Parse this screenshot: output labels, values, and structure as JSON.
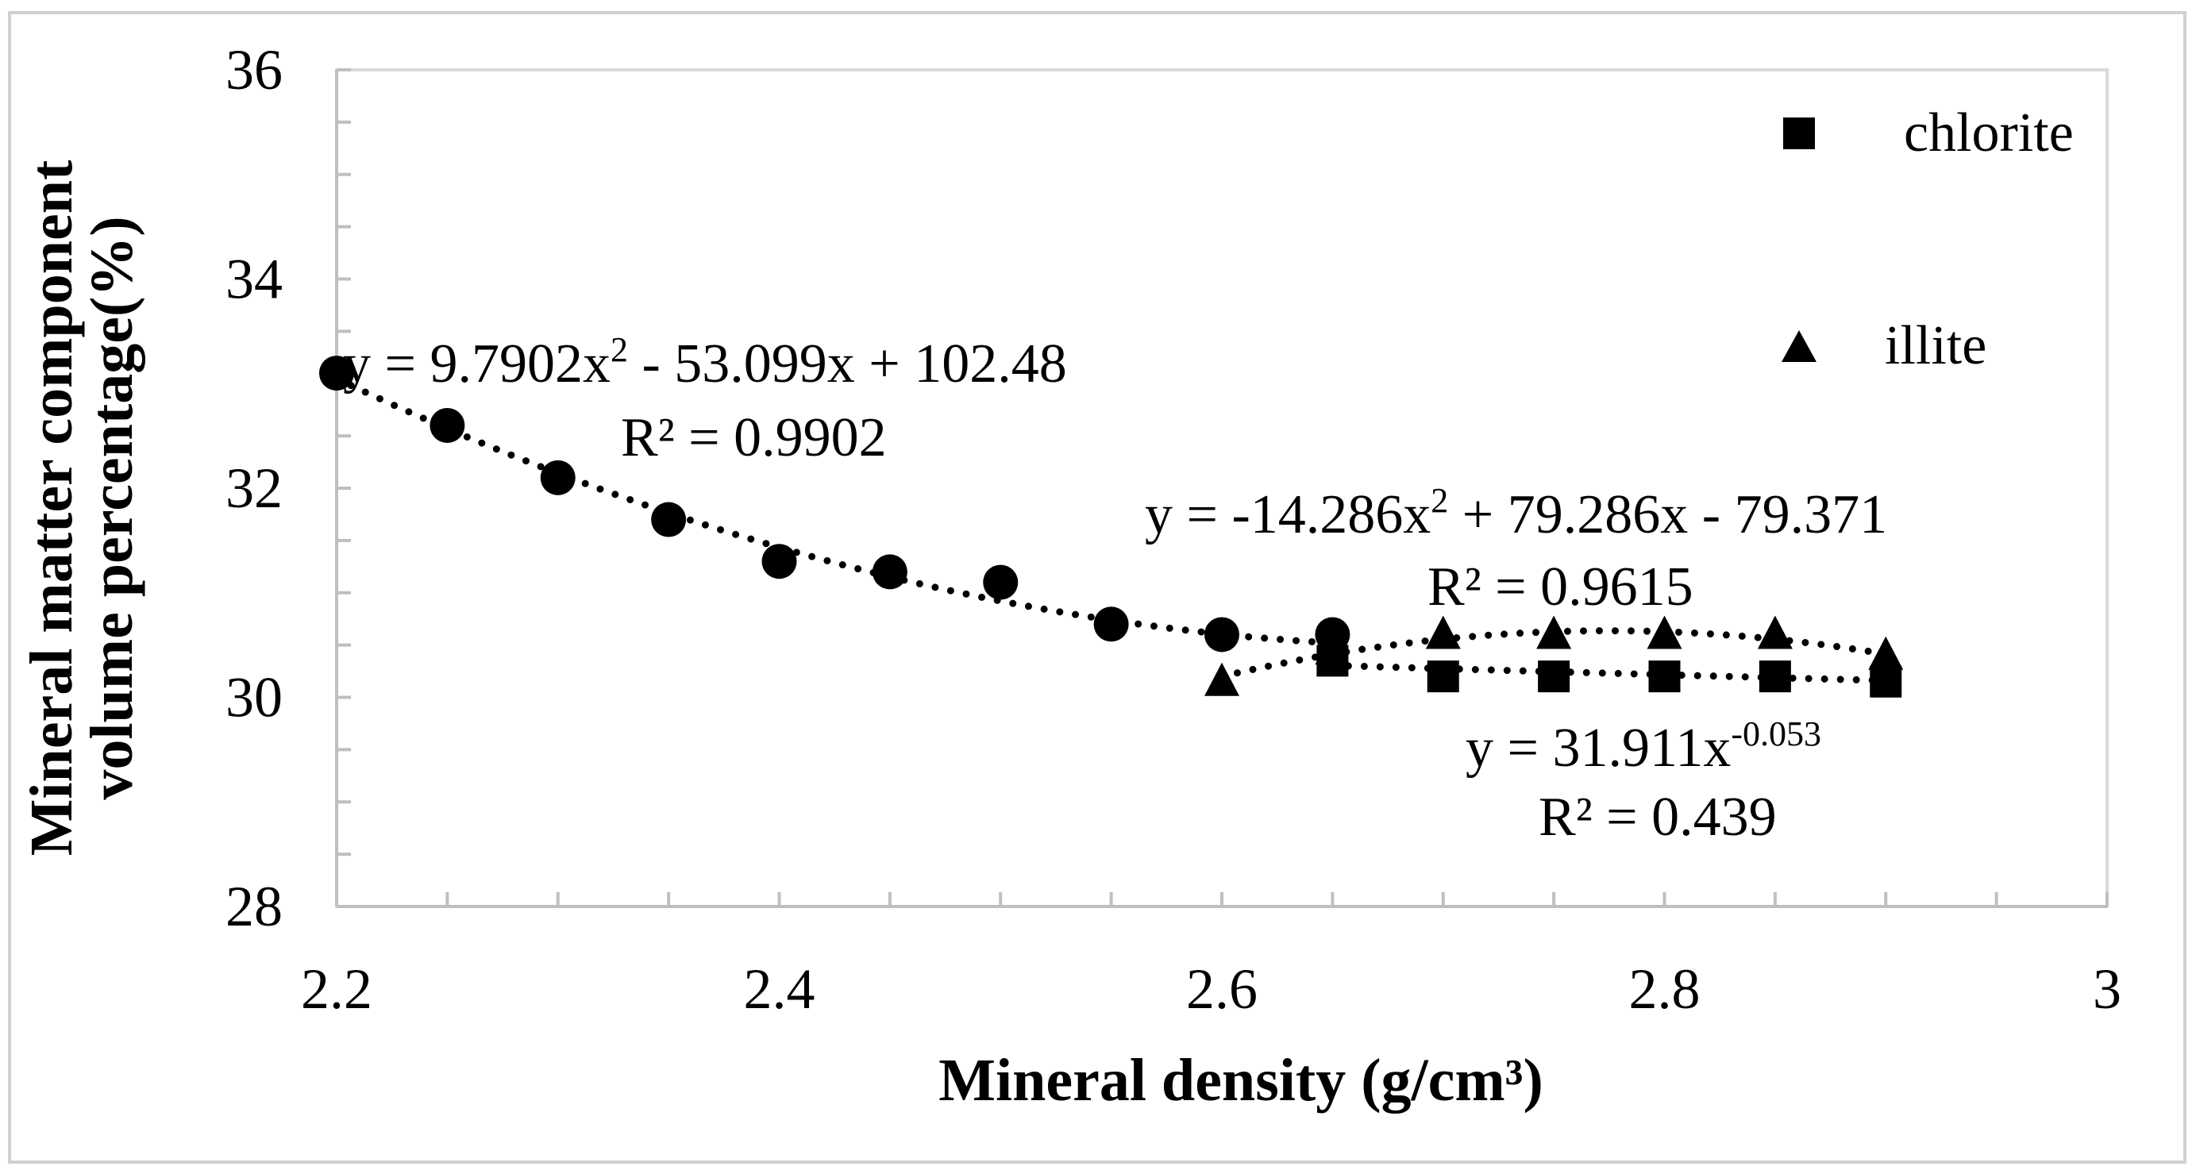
{
  "chart_data": {
    "type": "scatter",
    "xlabel": "Mineral density (g/cm³)",
    "ylabel_lines": [
      "Mineral matter component",
      "volume percentage(%)"
    ],
    "xlim": [
      2.2,
      3
    ],
    "ylim": [
      28,
      36
    ],
    "x_ticks": [
      "2.2",
      "2.4",
      "2.6",
      "2.8",
      "3"
    ],
    "y_ticks": [
      "28",
      "30",
      "32",
      "34",
      "36"
    ],
    "grid": false,
    "legend_position": "top-right",
    "series": [
      {
        "name": "circle series",
        "marker": "circle",
        "in_legend": false,
        "x": [
          2.2,
          2.25,
          2.3,
          2.35,
          2.4,
          2.45,
          2.5,
          2.55,
          2.6,
          2.65
        ],
        "y": [
          33.1,
          32.6,
          32.1,
          31.7,
          31.3,
          31.2,
          31.1,
          30.7,
          30.6,
          30.6
        ],
        "trendline": {
          "type": "poly2",
          "coefficients": [
            9.7902,
            -53.099,
            102.48
          ],
          "range": [
            2.2,
            2.65
          ]
        }
      },
      {
        "name": "chlorite",
        "marker": "square",
        "in_legend": true,
        "x": [
          2.65,
          2.7,
          2.75,
          2.8,
          2.85,
          2.9
        ],
        "y": [
          30.35,
          30.2,
          30.2,
          30.2,
          30.2,
          30.15
        ],
        "trendline": {
          "type": "power",
          "a": 31.911,
          "b": -0.053,
          "range": [
            2.65,
            2.9
          ]
        }
      },
      {
        "name": "illite",
        "marker": "triangle",
        "in_legend": true,
        "x": [
          2.6,
          2.65,
          2.7,
          2.75,
          2.8,
          2.85,
          2.9
        ],
        "y": [
          30.15,
          30.45,
          30.6,
          30.6,
          30.6,
          30.6,
          30.4
        ],
        "trendline": {
          "type": "poly2",
          "coefficients": [
            -14.286,
            79.286,
            -79.371
          ],
          "range": [
            2.6,
            2.9
          ]
        }
      }
    ],
    "annotations": {
      "circle_eq": {
        "pre": "y = 9.7902x",
        "sup": "2",
        "post": " - 53.099x + 102.48"
      },
      "circle_r2": "R² = 0.9902",
      "illite_eq": {
        "pre": "y = -14.286x",
        "sup": "2",
        "post": " + 79.286x - 79.371"
      },
      "illite_r2": "R² = 0.9615",
      "chlorite_eq": {
        "pre": "y = 31.911x",
        "sup": "-0.053",
        "post": ""
      },
      "chlorite_r2": "R² = 0.439"
    }
  }
}
